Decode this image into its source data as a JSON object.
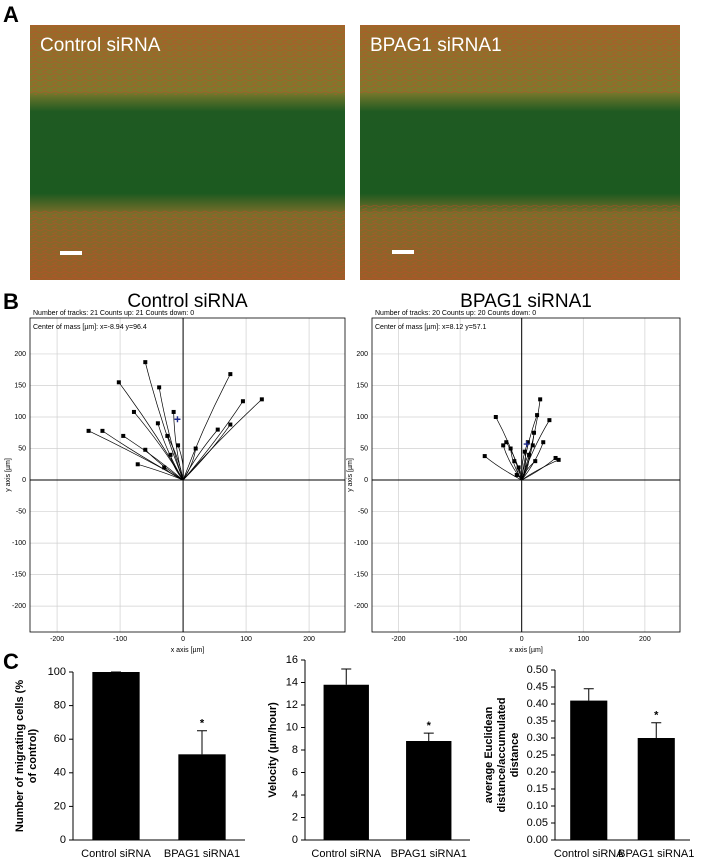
{
  "panel_labels": [
    "A",
    "B",
    "C"
  ],
  "images": [
    {
      "label": "Control siRNA"
    },
    {
      "label": "BPAG1 siRNA1"
    }
  ],
  "chart_data": [
    {
      "type": "scatter",
      "title": "Control siRNA",
      "annotations": [
        "Number of tracks: 21  Counts up: 21  Counts down: 0",
        "Center of mass [µm]: x=-8.94 y=96.4"
      ],
      "center_of_mass": {
        "x": -8.94,
        "y": 96.4,
        "color": "#1f2a8a"
      },
      "xlabel": "x axis [µm]",
      "ylabel": "y axis [µm]",
      "xlim": [
        -243,
        257
      ],
      "ylim": [
        -241,
        257
      ],
      "xticks": [
        -200,
        -100,
        0,
        100,
        200
      ],
      "yticks": [
        -200,
        -150,
        -100,
        -50,
        0,
        50,
        100,
        150,
        200
      ],
      "grid": true,
      "color": "#000000",
      "x": [
        -60,
        -102,
        -38,
        -78,
        -15,
        -95,
        -128,
        -150,
        -40,
        -25,
        -60,
        -8,
        -30,
        -72,
        75,
        95,
        125,
        75,
        55,
        20,
        -20
      ],
      "y": [
        187,
        155,
        147,
        108,
        108,
        70,
        78,
        78,
        90,
        70,
        48,
        55,
        20,
        25,
        168,
        125,
        128,
        88,
        80,
        50,
        40
      ]
    },
    {
      "type": "scatter",
      "title": "BPAG1 siRNA1",
      "annotations": [
        "Number of tracks: 20  Counts up: 20  Counts down: 0",
        "Center of mass [µm]: x=8.12 y=57.1"
      ],
      "center_of_mass": {
        "x": 8.12,
        "y": 57.1,
        "color": "#1f2a8a"
      },
      "xlabel": "x axis [µm]",
      "ylabel": "y axis [µm]",
      "xlim": [
        -243,
        257
      ],
      "ylim": [
        -241,
        257
      ],
      "xticks": [
        -200,
        -100,
        0,
        100,
        200
      ],
      "yticks": [
        -200,
        -150,
        -100,
        -50,
        0,
        50,
        100,
        150,
        200
      ],
      "grid": true,
      "color": "#000000",
      "x": [
        -60,
        -42,
        -30,
        -25,
        -18,
        -12,
        -5,
        5,
        10,
        12,
        18,
        20,
        25,
        30,
        45,
        55,
        60,
        35,
        22,
        -8
      ],
      "y": [
        38,
        100,
        55,
        60,
        50,
        30,
        20,
        45,
        60,
        40,
        55,
        75,
        103,
        128,
        95,
        35,
        32,
        60,
        30,
        8
      ]
    },
    {
      "type": "bar",
      "ylabel": [
        "Number of migrating cells (%",
        "of control)"
      ],
      "categories": [
        "Control siRNA",
        "BPAG1 siRNA1"
      ],
      "values": [
        100,
        51
      ],
      "errors": [
        0,
        14
      ],
      "annotation": "*",
      "color": "#000000",
      "ylim": [
        0,
        100
      ],
      "yticks": [
        0,
        20,
        40,
        60,
        80,
        100
      ]
    },
    {
      "type": "bar",
      "ylabel": [
        "Velocity (µm/hour)"
      ],
      "categories": [
        "Control siRNA",
        "BPAG1 siRNA1"
      ],
      "values": [
        13.8,
        8.8
      ],
      "errors": [
        1.4,
        0.7
      ],
      "annotation": "*",
      "color": "#000000",
      "ylim": [
        0,
        16
      ],
      "yticks": [
        0,
        2,
        4,
        6,
        8,
        10,
        12,
        14,
        16
      ]
    },
    {
      "type": "bar",
      "ylabel": [
        "average Euclidean",
        "distance/accumulated",
        "distance"
      ],
      "categories": [
        "Control siRNA",
        "BPAG1 siRNA1"
      ],
      "values": [
        0.41,
        0.3
      ],
      "errors": [
        0.035,
        0.045
      ],
      "annotation": "*",
      "color": "#000000",
      "ylim": [
        0,
        0.5
      ],
      "yticks": [
        {
          "value": 0,
          "label": "0.00"
        },
        {
          "value": 0.05,
          "label": "0.05"
        },
        {
          "value": 0.1,
          "label": "0.10"
        },
        {
          "value": 0.15,
          "label": "0.15"
        },
        {
          "value": 0.2,
          "label": "0.20"
        },
        {
          "value": 0.25,
          "label": "0.25"
        },
        {
          "value": 0.3,
          "label": "0.30"
        },
        {
          "value": 0.35,
          "label": "0.35"
        },
        {
          "value": 0.4,
          "label": "0.40"
        },
        {
          "value": 0.45,
          "label": "0.45"
        },
        {
          "value": 0.5,
          "label": "0.50"
        }
      ]
    }
  ]
}
